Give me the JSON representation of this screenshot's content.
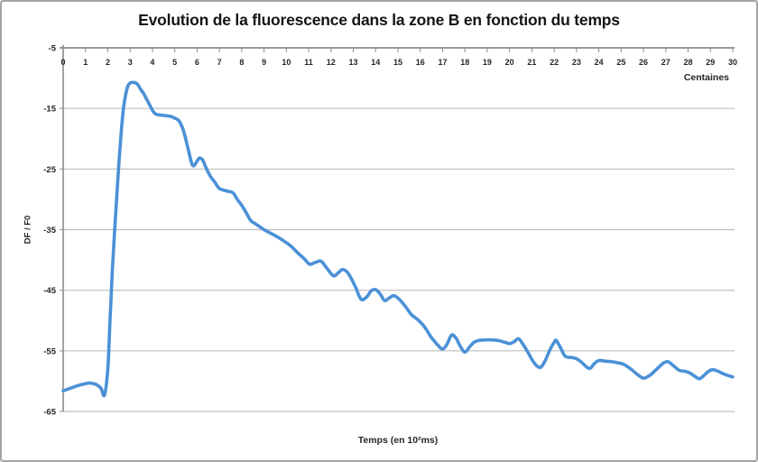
{
  "window": {
    "background_color": "#ffffff",
    "frame_border_color": "#a3a3a3"
  },
  "chart_data": {
    "type": "line",
    "title": "Evolution de la fluorescence dans la zone B en fonction du temps",
    "xlabel": "Temps (en 10²ms)",
    "ylabel": "DF / F0",
    "x_unit_note": "Centaines",
    "xlim": [
      0,
      30
    ],
    "ylim": [
      -65,
      -5
    ],
    "xticks": [
      0,
      1,
      2,
      3,
      4,
      5,
      6,
      7,
      8,
      9,
      10,
      11,
      12,
      13,
      14,
      15,
      16,
      17,
      18,
      19,
      20,
      21,
      22,
      23,
      24,
      25,
      26,
      27,
      28,
      29,
      30
    ],
    "yticks": [
      -5,
      -15,
      -25,
      -35,
      -45,
      -55,
      -65
    ],
    "grid": "horizontal",
    "legend": "none",
    "axis_position": "x-axis-at-top",
    "line_color": "#4b91d6",
    "axis_color": "#8c8c8c",
    "grid_color": "#bdbdbd",
    "text_color": "#262626",
    "series": [
      {
        "points": [
          [
            0,
            -61.6
          ],
          [
            0.3,
            -61.2
          ],
          [
            0.6,
            -60.8
          ],
          [
            0.9,
            -60.5
          ],
          [
            1.2,
            -60.3
          ],
          [
            1.5,
            -60.6
          ],
          [
            1.7,
            -61.2
          ],
          [
            1.85,
            -62.3
          ],
          [
            2.0,
            -58
          ],
          [
            2.1,
            -50
          ],
          [
            2.2,
            -42
          ],
          [
            2.3,
            -35.5
          ],
          [
            2.4,
            -29.5
          ],
          [
            2.5,
            -24
          ],
          [
            2.6,
            -19
          ],
          [
            2.7,
            -15
          ],
          [
            2.8,
            -12.7
          ],
          [
            2.9,
            -11.3
          ],
          [
            3.0,
            -10.8
          ],
          [
            3.15,
            -10.7
          ],
          [
            3.3,
            -10.9
          ],
          [
            3.4,
            -11.4
          ],
          [
            3.5,
            -12
          ],
          [
            3.6,
            -12.5
          ],
          [
            3.7,
            -13.2
          ],
          [
            3.8,
            -13.9
          ],
          [
            3.9,
            -14.6
          ],
          [
            4.0,
            -15.3
          ],
          [
            4.1,
            -15.8
          ],
          [
            4.2,
            -16
          ],
          [
            4.4,
            -16.1
          ],
          [
            4.6,
            -16.2
          ],
          [
            4.8,
            -16.3
          ],
          [
            5.0,
            -16.6
          ],
          [
            5.2,
            -17.1
          ],
          [
            5.4,
            -18.8
          ],
          [
            5.6,
            -21.7
          ],
          [
            5.8,
            -24.4
          ],
          [
            6.0,
            -23.7
          ],
          [
            6.1,
            -23.2
          ],
          [
            6.25,
            -23.5
          ],
          [
            6.4,
            -24.8
          ],
          [
            6.6,
            -26.2
          ],
          [
            6.8,
            -27.2
          ],
          [
            7.0,
            -28.2
          ],
          [
            7.3,
            -28.6
          ],
          [
            7.6,
            -28.9
          ],
          [
            7.8,
            -30
          ],
          [
            8.0,
            -31
          ],
          [
            8.2,
            -32.2
          ],
          [
            8.4,
            -33.5
          ],
          [
            8.6,
            -34
          ],
          [
            8.8,
            -34.5
          ],
          [
            9.0,
            -35
          ],
          [
            9.3,
            -35.6
          ],
          [
            9.6,
            -36.2
          ],
          [
            9.9,
            -36.9
          ],
          [
            10.2,
            -37.7
          ],
          [
            10.5,
            -38.8
          ],
          [
            10.8,
            -39.8
          ],
          [
            11.05,
            -40.7
          ],
          [
            11.3,
            -40.4
          ],
          [
            11.55,
            -40.2
          ],
          [
            11.8,
            -41.3
          ],
          [
            12.1,
            -42.6
          ],
          [
            12.3,
            -42.2
          ],
          [
            12.5,
            -41.6
          ],
          [
            12.7,
            -41.9
          ],
          [
            12.9,
            -43
          ],
          [
            13.1,
            -44.5
          ],
          [
            13.35,
            -46.5
          ],
          [
            13.6,
            -46.1
          ],
          [
            13.8,
            -45.1
          ],
          [
            14.0,
            -44.9
          ],
          [
            14.2,
            -45.6
          ],
          [
            14.4,
            -46.7
          ],
          [
            14.6,
            -46.3
          ],
          [
            14.8,
            -45.9
          ],
          [
            15.0,
            -46.3
          ],
          [
            15.3,
            -47.5
          ],
          [
            15.6,
            -49
          ],
          [
            15.9,
            -49.9
          ],
          [
            16.2,
            -51.1
          ],
          [
            16.5,
            -52.8
          ],
          [
            16.8,
            -54.1
          ],
          [
            17.0,
            -54.7
          ],
          [
            17.2,
            -53.9
          ],
          [
            17.4,
            -52.4
          ],
          [
            17.6,
            -52.9
          ],
          [
            17.8,
            -54.3
          ],
          [
            18.0,
            -55.2
          ],
          [
            18.2,
            -54.4
          ],
          [
            18.4,
            -53.6
          ],
          [
            18.6,
            -53.3
          ],
          [
            18.9,
            -53.2
          ],
          [
            19.2,
            -53.2
          ],
          [
            19.5,
            -53.3
          ],
          [
            19.8,
            -53.6
          ],
          [
            20.0,
            -53.8
          ],
          [
            20.2,
            -53.5
          ],
          [
            20.4,
            -53
          ],
          [
            20.6,
            -53.9
          ],
          [
            20.8,
            -55.1
          ],
          [
            21.0,
            -56.4
          ],
          [
            21.2,
            -57.4
          ],
          [
            21.4,
            -57.7
          ],
          [
            21.6,
            -56.6
          ],
          [
            21.8,
            -54.9
          ],
          [
            22.0,
            -53.6
          ],
          [
            22.1,
            -53.3
          ],
          [
            22.3,
            -54.6
          ],
          [
            22.5,
            -55.9
          ],
          [
            22.8,
            -56.1
          ],
          [
            23.0,
            -56.3
          ],
          [
            23.2,
            -56.8
          ],
          [
            23.4,
            -57.5
          ],
          [
            23.6,
            -57.9
          ],
          [
            23.8,
            -57.1
          ],
          [
            24.0,
            -56.6
          ],
          [
            24.3,
            -56.7
          ],
          [
            24.6,
            -56.8
          ],
          [
            24.9,
            -57
          ],
          [
            25.1,
            -57.2
          ],
          [
            25.4,
            -57.9
          ],
          [
            25.7,
            -58.8
          ],
          [
            26.0,
            -59.5
          ],
          [
            26.3,
            -59
          ],
          [
            26.6,
            -58
          ],
          [
            26.9,
            -57
          ],
          [
            27.1,
            -56.8
          ],
          [
            27.3,
            -57.3
          ],
          [
            27.6,
            -58.2
          ],
          [
            27.9,
            -58.4
          ],
          [
            28.1,
            -58.7
          ],
          [
            28.3,
            -59.2
          ],
          [
            28.5,
            -59.6
          ],
          [
            28.7,
            -59.1
          ],
          [
            28.9,
            -58.4
          ],
          [
            29.1,
            -58.1
          ],
          [
            29.3,
            -58.3
          ],
          [
            29.6,
            -58.8
          ],
          [
            29.9,
            -59.2
          ],
          [
            30.0,
            -59.3
          ]
        ]
      }
    ]
  }
}
